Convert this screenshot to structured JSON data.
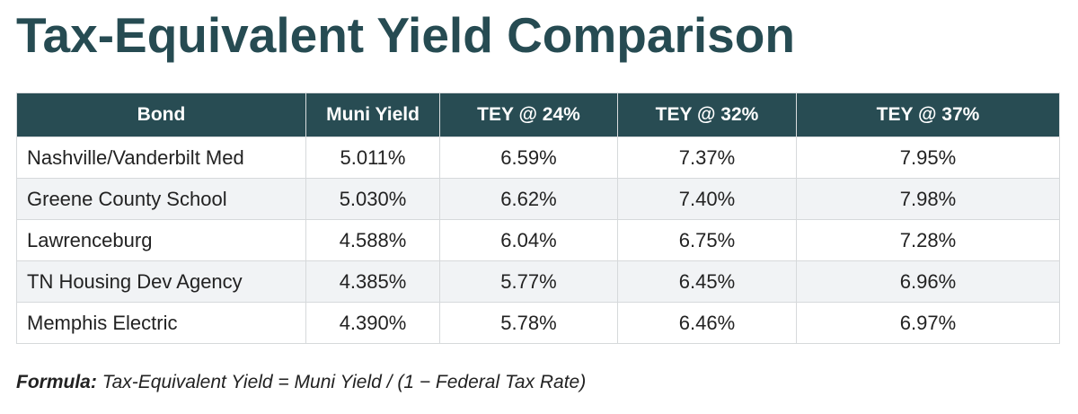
{
  "title": "Tax-Equivalent Yield Comparison",
  "table": {
    "headers": [
      "Bond",
      "Muni Yield",
      "TEY @ 24%",
      "TEY @ 32%",
      "TEY @ 37%"
    ],
    "rows": [
      [
        "Nashville/Vanderbilt Med",
        "5.011%",
        "6.59%",
        "7.37%",
        "7.95%"
      ],
      [
        "Greene County School",
        "5.030%",
        "6.62%",
        "7.40%",
        "7.98%"
      ],
      [
        "Lawrenceburg",
        "4.588%",
        "6.04%",
        "6.75%",
        "7.28%"
      ],
      [
        "TN Housing Dev Agency",
        "4.385%",
        "5.77%",
        "6.45%",
        "6.96%"
      ],
      [
        "Memphis Electric",
        "4.390%",
        "5.78%",
        "6.46%",
        "6.97%"
      ]
    ]
  },
  "formula": {
    "label": "Formula:",
    "text": "Tax-Equivalent Yield = Muni Yield / (1 − Federal Tax Rate)"
  },
  "colors": {
    "title": "#264b52",
    "header_bg": "#284c53",
    "header_text": "#ffffff",
    "row_alt_bg": "#f1f3f5"
  }
}
